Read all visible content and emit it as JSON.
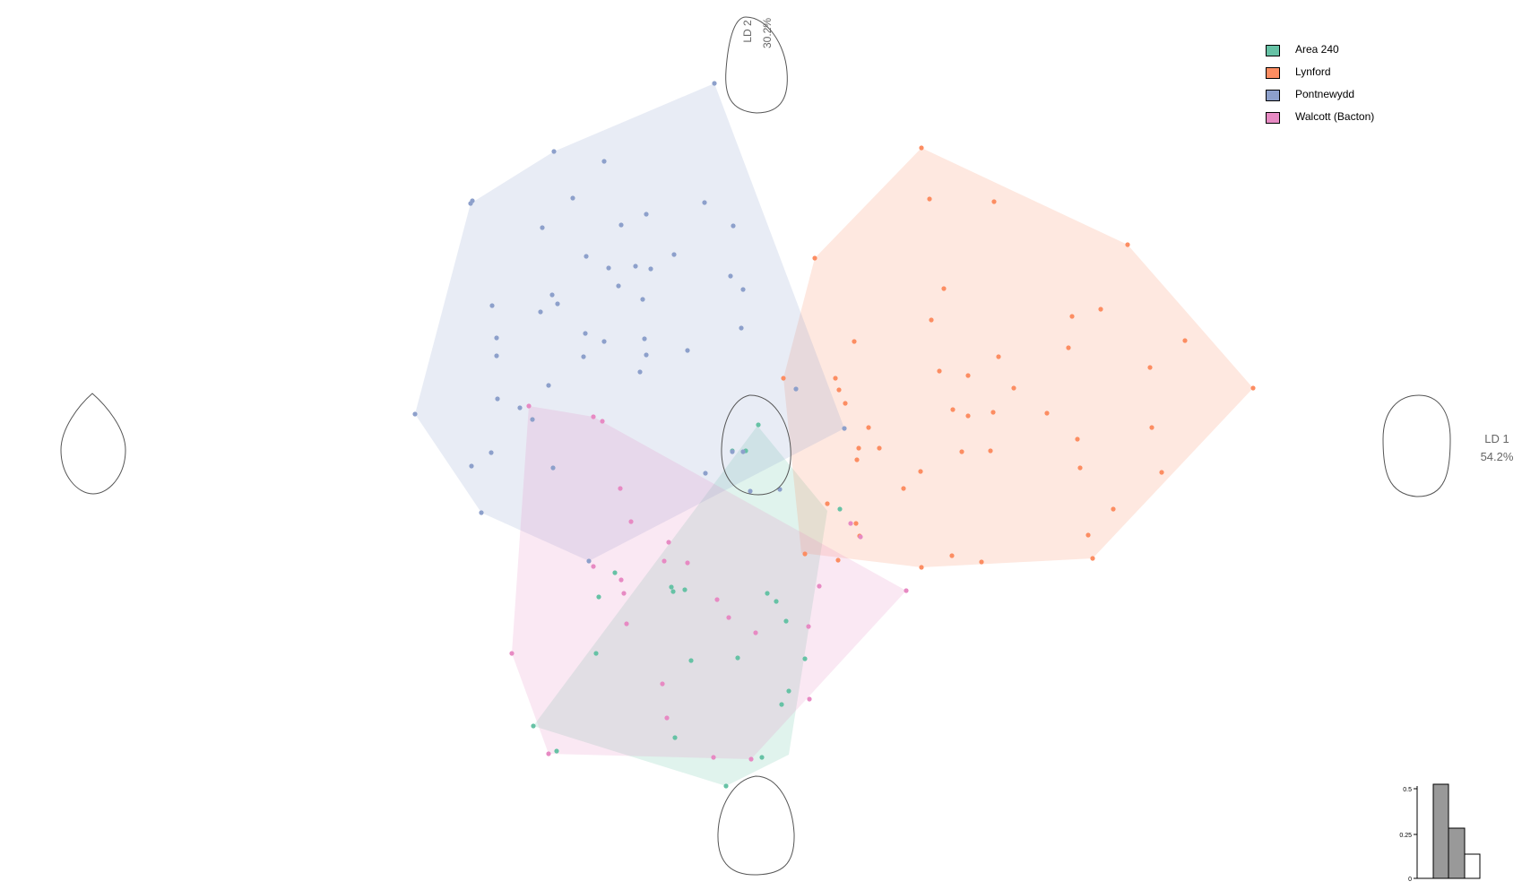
{
  "chart_data": {
    "type": "scatter",
    "axes": {
      "ld1": {
        "label": "LD 1",
        "percent": "54.2%"
      },
      "ld2": {
        "label": "LD 2",
        "percent": "30.2%"
      }
    },
    "grid": false,
    "legend_position": "top-right",
    "groups": [
      {
        "name": "Area 240",
        "color": "#66c2a5",
        "hull": [
          [
            845,
            475
          ],
          [
            923,
            570
          ],
          [
            880,
            842
          ],
          [
            810,
            877
          ],
          [
            595,
            810
          ]
        ],
        "points": [
          [
            846,
            474
          ],
          [
            817,
            503
          ],
          [
            832,
            503
          ],
          [
            937,
            568
          ],
          [
            686,
            639
          ],
          [
            764,
            658
          ],
          [
            668,
            666
          ],
          [
            751,
            660
          ],
          [
            749,
            655
          ],
          [
            856,
            662
          ],
          [
            866,
            671
          ],
          [
            877,
            693
          ],
          [
            665,
            729
          ],
          [
            771,
            737
          ],
          [
            823,
            734
          ],
          [
            898,
            735
          ],
          [
            880,
            771
          ],
          [
            872,
            786
          ],
          [
            595,
            810
          ],
          [
            621,
            838
          ],
          [
            753,
            823
          ],
          [
            850,
            845
          ],
          [
            810,
            877
          ]
        ]
      },
      {
        "name": "Lynford",
        "color": "#fc8d62",
        "hull": [
          [
            1028,
            165
          ],
          [
            1258,
            273
          ],
          [
            1398,
            433
          ],
          [
            1219,
            623
          ],
          [
            1028,
            633
          ],
          [
            894,
            617
          ],
          [
            874,
            422
          ],
          [
            909,
            288
          ]
        ],
        "points": [
          [
            1028,
            165
          ],
          [
            1037,
            222
          ],
          [
            1109,
            225
          ],
          [
            1258,
            273
          ],
          [
            909,
            288
          ],
          [
            1053,
            322
          ],
          [
            1196,
            353
          ],
          [
            1228,
            345
          ],
          [
            1039,
            357
          ],
          [
            953,
            381
          ],
          [
            1322,
            380
          ],
          [
            1114,
            398
          ],
          [
            1192,
            388
          ],
          [
            1283,
            410
          ],
          [
            1048,
            414
          ],
          [
            1080,
            419
          ],
          [
            1131,
            433
          ],
          [
            1398,
            433
          ],
          [
            874,
            422
          ],
          [
            932,
            422
          ],
          [
            936,
            435
          ],
          [
            943,
            450
          ],
          [
            1063,
            457
          ],
          [
            1080,
            464
          ],
          [
            1108,
            460
          ],
          [
            1168,
            461
          ],
          [
            1202,
            490
          ],
          [
            1285,
            477
          ],
          [
            969,
            477
          ],
          [
            958,
            500
          ],
          [
            981,
            500
          ],
          [
            956,
            513
          ],
          [
            1073,
            504
          ],
          [
            1105,
            503
          ],
          [
            1205,
            522
          ],
          [
            1296,
            527
          ],
          [
            1027,
            526
          ],
          [
            1008,
            545
          ],
          [
            923,
            562
          ],
          [
            955,
            584
          ],
          [
            959,
            598
          ],
          [
            1242,
            568
          ],
          [
            1214,
            597
          ],
          [
            898,
            618
          ],
          [
            935,
            625
          ],
          [
            1062,
            620
          ],
          [
            1095,
            627
          ],
          [
            1219,
            623
          ],
          [
            1028,
            633
          ]
        ]
      },
      {
        "name": "Pontnewydd",
        "color": "#8da0cb",
        "hull": [
          [
            797,
            93
          ],
          [
            942,
            478
          ],
          [
            657,
            626
          ],
          [
            537,
            572
          ],
          [
            463,
            462
          ],
          [
            525,
            227
          ],
          [
            618,
            169
          ]
        ],
        "points": [
          [
            797,
            93
          ],
          [
            618,
            169
          ],
          [
            674,
            180
          ],
          [
            527,
            224
          ],
          [
            525,
            227
          ],
          [
            639,
            221
          ],
          [
            786,
            226
          ],
          [
            721,
            239
          ],
          [
            605,
            254
          ],
          [
            693,
            251
          ],
          [
            818,
            252
          ],
          [
            654,
            286
          ],
          [
            752,
            284
          ],
          [
            679,
            299
          ],
          [
            709,
            297
          ],
          [
            726,
            300
          ],
          [
            815,
            308
          ],
          [
            690,
            319
          ],
          [
            829,
            323
          ],
          [
            616,
            329
          ],
          [
            603,
            348
          ],
          [
            549,
            341
          ],
          [
            622,
            339
          ],
          [
            717,
            334
          ],
          [
            827,
            366
          ],
          [
            653,
            372
          ],
          [
            674,
            381
          ],
          [
            554,
            377
          ],
          [
            719,
            378
          ],
          [
            767,
            391
          ],
          [
            721,
            396
          ],
          [
            651,
            398
          ],
          [
            554,
            397
          ],
          [
            714,
            415
          ],
          [
            612,
            430
          ],
          [
            888,
            434
          ],
          [
            555,
            445
          ],
          [
            580,
            455
          ],
          [
            594,
            468
          ],
          [
            942,
            478
          ],
          [
            463,
            462
          ],
          [
            548,
            505
          ],
          [
            526,
            520
          ],
          [
            617,
            522
          ],
          [
            787,
            528
          ],
          [
            817,
            504
          ],
          [
            829,
            504
          ],
          [
            837,
            548
          ],
          [
            870,
            546
          ],
          [
            537,
            572
          ],
          [
            657,
            626
          ]
        ]
      },
      {
        "name": "Walcott (Bacton)",
        "color": "#e78ac3",
        "hull": [
          [
            590,
            453
          ],
          [
            662,
            465
          ],
          [
            1011,
            659
          ],
          [
            838,
            847
          ],
          [
            612,
            841
          ],
          [
            571,
            729
          ]
        ],
        "points": [
          [
            590,
            453
          ],
          [
            662,
            465
          ],
          [
            672,
            470
          ],
          [
            692,
            545
          ],
          [
            704,
            582
          ],
          [
            949,
            584
          ],
          [
            746,
            605
          ],
          [
            960,
            599
          ],
          [
            741,
            626
          ],
          [
            767,
            628
          ],
          [
            662,
            632
          ],
          [
            693,
            647
          ],
          [
            696,
            662
          ],
          [
            914,
            654
          ],
          [
            1011,
            659
          ],
          [
            800,
            669
          ],
          [
            813,
            689
          ],
          [
            843,
            706
          ],
          [
            902,
            699
          ],
          [
            699,
            696
          ],
          [
            571,
            729
          ],
          [
            739,
            763
          ],
          [
            744,
            801
          ],
          [
            903,
            780
          ],
          [
            612,
            841
          ],
          [
            796,
            845
          ],
          [
            838,
            847
          ]
        ]
      }
    ]
  }
}
